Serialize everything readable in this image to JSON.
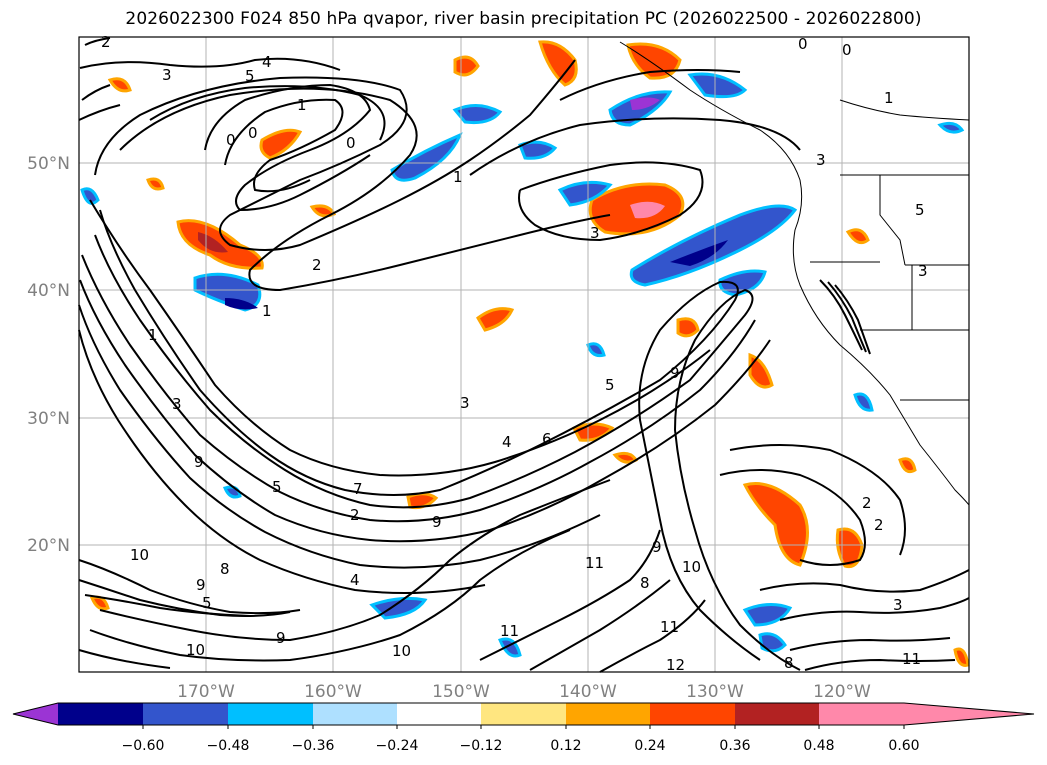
{
  "title": "2026022300 F024 850 hPa qvapor, river basin precipitation PC (2026022500 - 2026022800)",
  "lat_labels": [
    "50°N",
    "40°N",
    "30°N",
    "20°N"
  ],
  "lon_labels": [
    "170°W",
    "160°W",
    "150°W",
    "140°W",
    "130°W",
    "120°W"
  ],
  "colorbar": {
    "colors": [
      "#9b34d4",
      "#00008b",
      "#3355cc",
      "#00bfff",
      "#aee0ff",
      "#ffffff",
      "#ffe680",
      "#ffa500",
      "#ff4500",
      "#b22222",
      "#ff88aa"
    ],
    "tick_labels": [
      "−0.60",
      "−0.48",
      "−0.36",
      "−0.24",
      "−0.12",
      "0.12",
      "0.24",
      "0.36",
      "0.48",
      "0.60"
    ]
  },
  "contour_labels": [
    "2",
    "3",
    "5",
    "4",
    "0",
    "0",
    "0",
    "1",
    "2",
    "1",
    "3",
    "1",
    "0",
    "0",
    "1",
    "3",
    "5",
    "3",
    "3",
    "9",
    "5",
    "4",
    "6",
    "3",
    "7",
    "9",
    "2",
    "10",
    "4",
    "9",
    "5",
    "9",
    "8",
    "10",
    "10",
    "11",
    "11",
    "12",
    "9",
    "10",
    "11",
    "8",
    "8",
    "11",
    "2",
    "2",
    "3",
    "5",
    "1",
    "9"
  ]
}
